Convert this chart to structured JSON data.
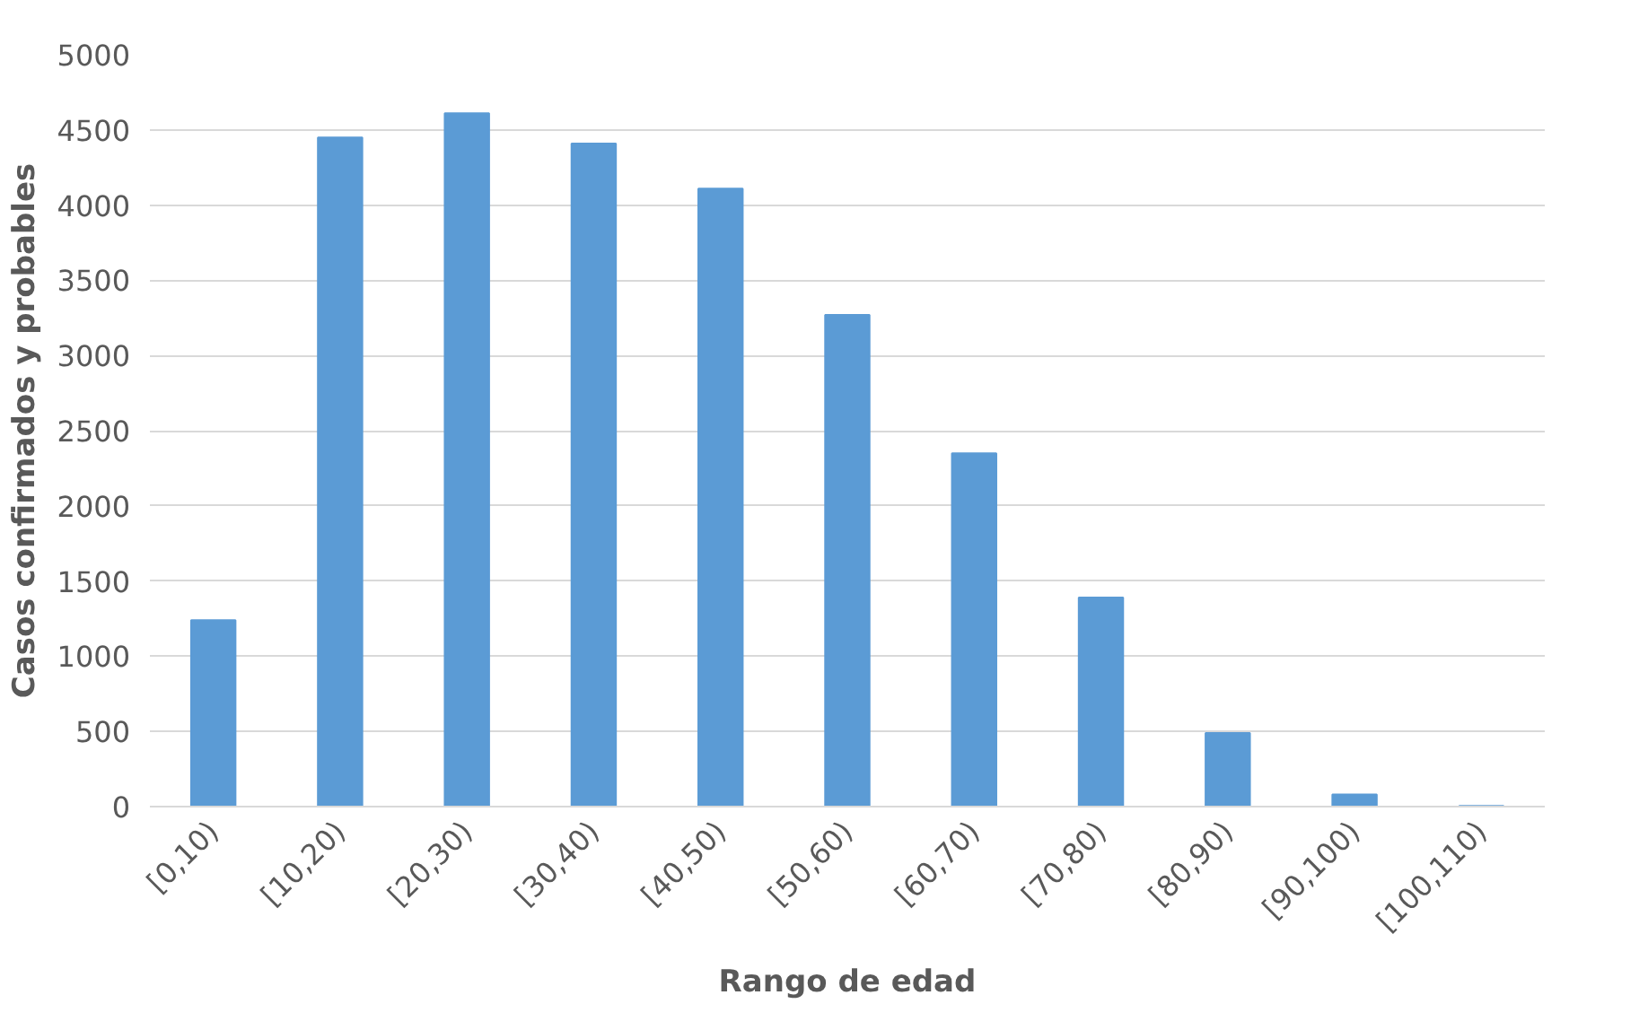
{
  "chart_data": {
    "type": "bar",
    "xlabel": "Rango de edad",
    "ylabel": "Casos confirmados y probables",
    "categories": [
      "[0,10)",
      "[10,20)",
      "[20,30)",
      "[30,40)",
      "[40,50)",
      "[50,60)",
      "[60,70)",
      "[70,80)",
      "[80,90)",
      "[90,100)",
      "[100,110)"
    ],
    "values": [
      1240,
      4450,
      4610,
      4410,
      4110,
      3270,
      2350,
      1390,
      490,
      80,
      5
    ],
    "color": "#5b9bd5",
    "ylim": [
      0,
      5000
    ],
    "yticks": [
      0,
      500,
      1000,
      1500,
      2000,
      2500,
      3000,
      3500,
      4000,
      4500,
      5000
    ],
    "grid": "y"
  }
}
